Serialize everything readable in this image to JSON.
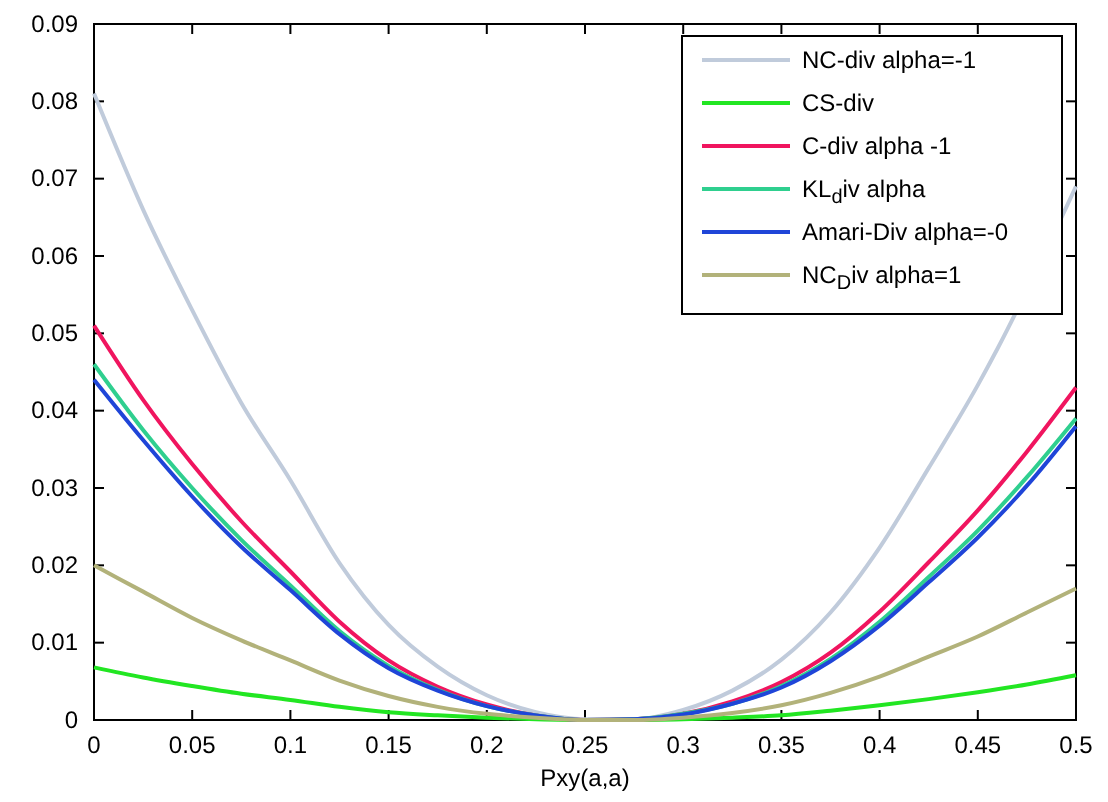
{
  "chart_data": {
    "type": "line",
    "xlabel": "Pxy(a,a)",
    "x": [
      0,
      0.025,
      0.05,
      0.075,
      0.1,
      0.125,
      0.15,
      0.175,
      0.2,
      0.225,
      0.25,
      0.275,
      0.3,
      0.325,
      0.35,
      0.375,
      0.4,
      0.425,
      0.45,
      0.475,
      0.5
    ],
    "xlim": [
      0,
      0.5
    ],
    "xticks": [
      0,
      0.05,
      0.1,
      0.15,
      0.2,
      0.25,
      0.3,
      0.35,
      0.4,
      0.45,
      0.5
    ],
    "ylim": [
      0,
      0.09
    ],
    "yticks": [
      0,
      0.01,
      0.02,
      0.03,
      0.04,
      0.05,
      0.06,
      0.07,
      0.08,
      0.09
    ],
    "grid": false,
    "legend": "top right",
    "marker": "none",
    "line_style": "solid",
    "series": [
      {
        "name": "NC-div alpha=-1",
        "color": "#c0cbdb",
        "x": [
          0,
          0.025,
          0.05,
          0.075,
          0.1,
          0.125,
          0.15,
          0.175,
          0.2,
          0.225,
          0.25,
          0.275,
          0.3,
          0.325,
          0.35,
          0.375,
          0.4,
          0.425,
          0.45,
          0.46,
          0.5
        ],
        "values": [
          0.081,
          0.066,
          0.053,
          0.041,
          0.031,
          0.0203,
          0.0123,
          0.0069,
          0.0032,
          0.001,
          0.0001,
          0.0001,
          0.0013,
          0.0038,
          0.0078,
          0.0139,
          0.0223,
          0.0326,
          0.0433,
          0.048,
          0.069
        ]
      },
      {
        "name": "CS-div",
        "color": "#22e622",
        "values": [
          0.0068,
          0.0055,
          0.0044,
          0.0034,
          0.0026,
          0.0017,
          0.001,
          0.0006,
          0.0003,
          0.0001,
          0,
          0,
          0.0001,
          0.0003,
          0.0006,
          0.0012,
          0.0019,
          0.0027,
          0.0036,
          0.0046,
          0.0058
        ]
      },
      {
        "name": "C-div alpha -1",
        "color": "#f0155f",
        "values": [
          0.051,
          0.0414,
          0.0331,
          0.0257,
          0.0192,
          0.0127,
          0.0077,
          0.0043,
          0.002,
          0.0006,
          0,
          0.0001,
          0.0008,
          0.0024,
          0.0049,
          0.0087,
          0.014,
          0.0204,
          0.0271,
          0.0347,
          0.043
        ]
      },
      {
        "name": "KL$_{d}$iv alpha",
        "color": "#2fcf8f",
        "values": [
          0.046,
          0.0375,
          0.03,
          0.0233,
          0.0174,
          0.0115,
          0.007,
          0.0039,
          0.0018,
          0.0006,
          0,
          0.0001,
          0.0008,
          0.0021,
          0.0044,
          0.0079,
          0.0127,
          0.0185,
          0.0245,
          0.0314,
          0.039
        ]
      },
      {
        "name": "Amari-Div alpha=-0",
        "color": "#1f45d8",
        "values": [
          0.044,
          0.0362,
          0.0289,
          0.0224,
          0.0168,
          0.0111,
          0.0067,
          0.0038,
          0.0018,
          0.0006,
          0,
          0.0001,
          0.0007,
          0.0021,
          0.0042,
          0.0076,
          0.0122,
          0.0178,
          0.0236,
          0.0303,
          0.038
        ]
      },
      {
        "name": "NC$_{D}$iv alpha=1",
        "color": "#b2b27a",
        "values": [
          0.02,
          0.0166,
          0.0132,
          0.0103,
          0.0077,
          0.0051,
          0.0031,
          0.0017,
          0.0008,
          0.0003,
          0,
          0,
          0.0003,
          0.0009,
          0.0019,
          0.0035,
          0.0056,
          0.0082,
          0.0108,
          0.0139,
          0.017
        ]
      }
    ]
  }
}
